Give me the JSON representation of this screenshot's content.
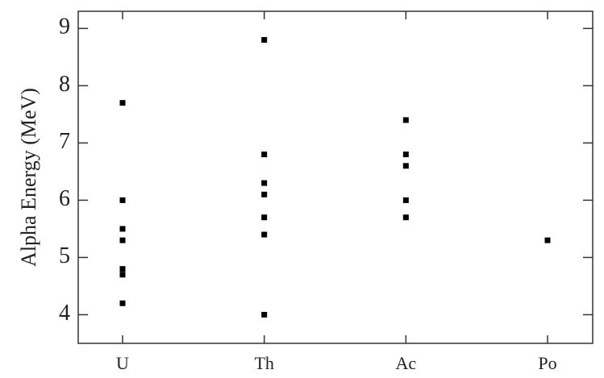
{
  "chart_data": {
    "type": "scatter",
    "y_label": "Alpha Energy (MeV)",
    "categories": [
      "U",
      "Th",
      "Ac",
      "Po"
    ],
    "values": [
      [
        7.7,
        6.0,
        5.5,
        5.3,
        4.8,
        4.7,
        4.2
      ],
      [
        8.8,
        6.8,
        6.3,
        6.1,
        5.7,
        5.4,
        4.0
      ],
      [
        7.4,
        6.8,
        6.6,
        6.0,
        5.7
      ],
      [
        5.3
      ]
    ],
    "color": "#000000",
    "ylim": [
      3.5,
      9.3
    ],
    "yticks": [
      4,
      5,
      6,
      7,
      8,
      9
    ],
    "grid": false
  }
}
